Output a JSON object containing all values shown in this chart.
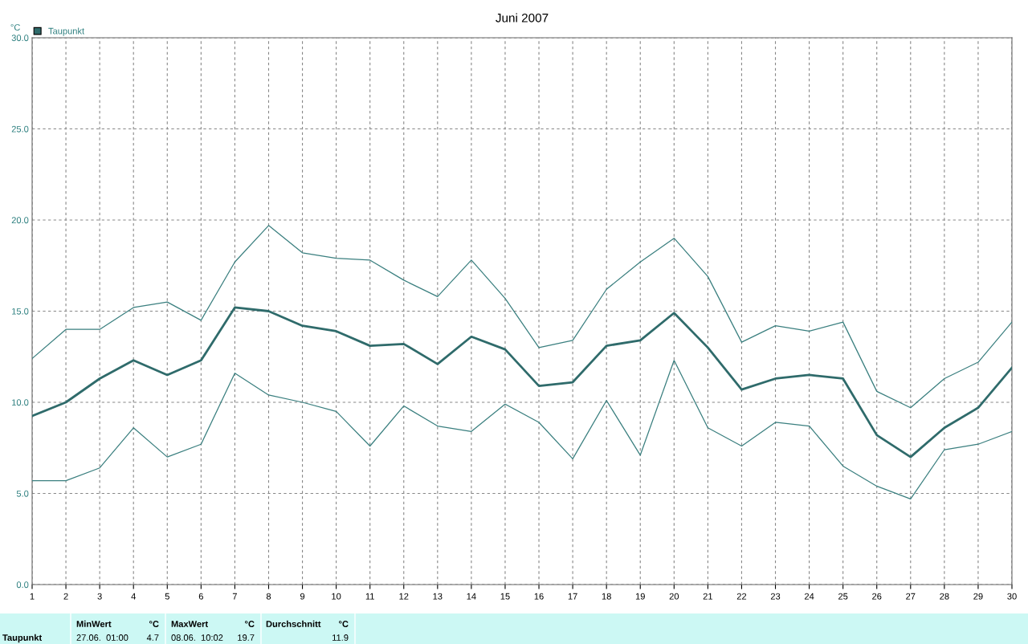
{
  "chart_data": {
    "type": "line",
    "title": "Juni 2007",
    "ylabel": "°C",
    "x": [
      1,
      2,
      3,
      4,
      5,
      6,
      7,
      8,
      9,
      10,
      11,
      12,
      13,
      14,
      15,
      16,
      17,
      18,
      19,
      20,
      21,
      22,
      23,
      24,
      25,
      26,
      27,
      28,
      29,
      30
    ],
    "series": [
      {
        "name": "Taupunkt",
        "color": "#2f6b6b",
        "values": [
          9.25,
          10.0,
          11.3,
          12.3,
          11.5,
          12.3,
          15.2,
          15.0,
          14.2,
          13.9,
          13.1,
          13.2,
          12.1,
          13.6,
          12.9,
          10.9,
          11.1,
          13.1,
          13.4,
          14.9,
          13.0,
          10.7,
          11.3,
          11.5,
          11.3,
          8.2,
          7.0,
          8.6,
          9.7,
          11.9
        ]
      },
      {
        "color": "#3a7f7f",
        "values": [
          12.4,
          14.0,
          14.0,
          15.2,
          15.5,
          14.5,
          17.7,
          19.7,
          18.2,
          17.9,
          17.8,
          16.7,
          15.8,
          17.8,
          15.7,
          13.0,
          13.4,
          16.2,
          17.7,
          19.0,
          16.9,
          13.3,
          14.2,
          13.9,
          14.4,
          10.6,
          9.7,
          11.3,
          12.2,
          14.4
        ]
      },
      {
        "color": "#3a7f7f",
        "values": [
          5.7,
          5.7,
          6.4,
          8.6,
          7.0,
          7.7,
          11.6,
          10.4,
          10.0,
          9.5,
          7.6,
          9.8,
          8.7,
          8.4,
          9.9,
          8.9,
          6.9,
          10.1,
          7.1,
          12.3,
          8.6,
          7.6,
          8.9,
          8.7,
          6.5,
          5.4,
          4.7,
          7.4,
          7.7,
          8.4
        ]
      }
    ],
    "xlim": [
      1,
      30
    ],
    "xticks": [
      1,
      2,
      3,
      4,
      5,
      6,
      7,
      8,
      9,
      10,
      11,
      12,
      13,
      14,
      15,
      16,
      17,
      18,
      19,
      20,
      21,
      22,
      23,
      24,
      25,
      26,
      27,
      28,
      29,
      30
    ],
    "ylim": [
      0,
      30
    ],
    "yticks": [
      {
        "value": 0,
        "label": "0.0"
      },
      {
        "value": 5,
        "label": "5.0"
      },
      {
        "value": 10,
        "label": "10.0"
      },
      {
        "value": 15,
        "label": "15.0"
      },
      {
        "value": 20,
        "label": "20.0"
      },
      {
        "value": 25,
        "label": "25.0"
      },
      {
        "value": 30,
        "label": "30.0"
      }
    ],
    "grid": true,
    "legend": "top left",
    "marker": "none",
    "line_style": "solid",
    "annotations": [
      "MinWert",
      "°C",
      "MaxWert",
      "°C",
      "Durchschnitt",
      "°C",
      "Taupunkt",
      "27.06.  01:00",
      "4.7",
      "08.06.  10:02",
      "19.7",
      "11.9"
    ]
  }
}
